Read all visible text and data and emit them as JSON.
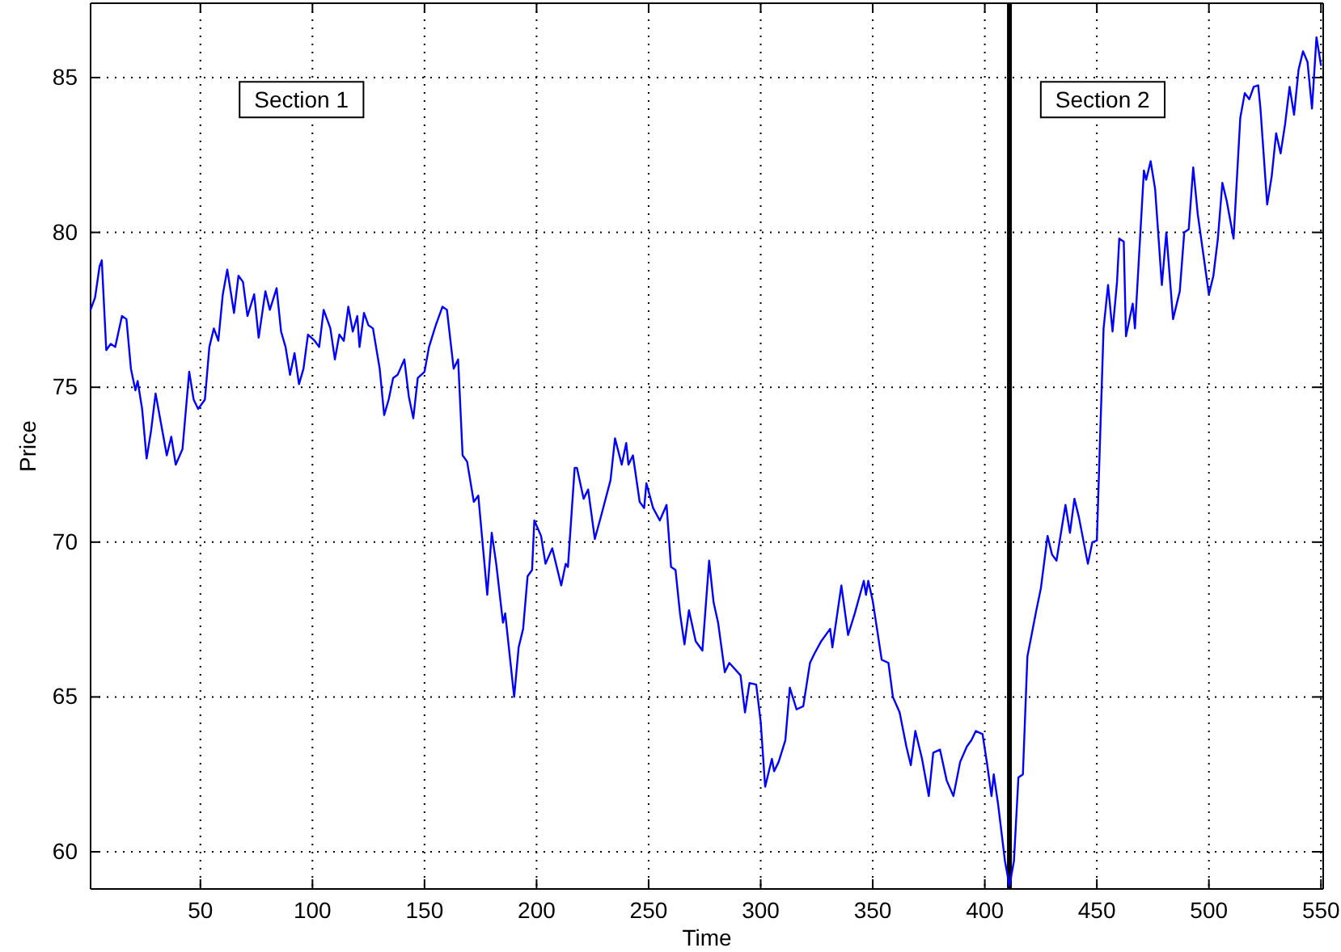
{
  "chart_data": {
    "type": "line",
    "xlabel": "Time",
    "ylabel": "Price",
    "xlim": [
      1,
      551
    ],
    "ylim": [
      58.8,
      87.4
    ],
    "xticks": [
      50,
      100,
      150,
      200,
      250,
      300,
      350,
      400,
      450,
      500,
      550
    ],
    "yticks": [
      60,
      65,
      70,
      75,
      80,
      85
    ],
    "grid": true,
    "line_style": "solid",
    "marker": "none",
    "annotations": [
      "Section 1",
      "Section 2"
    ],
    "ref_lines": [
      {
        "axis": "x",
        "value": 411,
        "color": "#000000"
      }
    ],
    "series": [
      {
        "color": "#0000ff",
        "x": [
          1,
          3,
          5,
          6,
          8,
          10,
          12,
          15,
          17,
          19,
          21,
          22,
          24,
          26,
          28,
          30,
          32,
          35,
          37,
          39,
          42,
          45,
          47,
          49,
          52,
          54,
          56,
          58,
          60,
          62,
          65,
          67,
          69,
          71,
          74,
          76,
          79,
          81,
          84,
          86,
          88,
          90,
          92,
          94,
          96,
          98,
          101,
          103,
          105,
          108,
          110,
          112,
          114,
          116,
          118,
          120,
          121,
          123,
          125,
          127,
          130,
          132,
          134,
          136,
          138,
          141,
          143,
          145,
          147,
          150,
          152,
          155,
          158,
          160,
          163,
          165,
          167,
          169,
          172,
          174,
          178,
          180,
          182,
          185,
          186,
          190,
          192,
          194,
          196,
          198,
          199,
          202,
          204,
          207,
          211,
          213,
          214,
          217,
          218,
          221,
          223,
          226,
          229,
          233,
          235,
          238,
          240,
          241,
          243,
          246,
          248,
          249,
          252,
          255,
          258,
          260,
          262,
          264,
          266,
          268,
          271,
          274,
          277,
          279,
          281,
          284,
          286,
          291,
          293,
          295,
          298,
          300,
          302,
          305,
          306,
          308,
          311,
          313,
          316,
          319,
          322,
          324,
          327,
          331,
          332,
          336,
          339,
          342,
          346,
          347,
          348,
          350,
          354,
          357,
          359,
          362,
          365,
          367,
          369,
          372,
          375,
          377,
          380,
          383,
          386,
          389,
          392,
          394,
          396,
          399,
          401,
          403,
          404,
          406,
          409,
          411,
          413,
          415,
          417,
          419,
          423,
          425,
          428,
          430,
          432,
          436,
          438,
          440,
          442,
          446,
          448,
          450,
          453,
          455,
          457,
          459,
          460,
          462,
          463,
          466,
          467,
          471,
          472,
          474,
          476,
          479,
          481,
          484,
          487,
          489,
          491,
          493,
          495,
          500,
          502,
          504,
          506,
          508,
          511,
          514,
          516,
          518,
          520,
          522,
          523,
          526,
          528,
          530,
          532,
          534,
          536,
          538,
          540,
          542,
          544,
          546,
          548,
          550
        ],
        "values": [
          77.5,
          77.9,
          78.9,
          79.1,
          76.2,
          76.4,
          76.3,
          77.3,
          77.2,
          75.6,
          74.9,
          75.2,
          74.3,
          72.7,
          73.6,
          74.8,
          74.0,
          72.8,
          73.4,
          72.5,
          73.0,
          75.5,
          74.6,
          74.3,
          74.6,
          76.3,
          76.9,
          76.5,
          78.0,
          78.8,
          77.4,
          78.6,
          78.4,
          77.3,
          78.0,
          76.6,
          78.1,
          77.5,
          78.2,
          76.8,
          76.3,
          75.4,
          76.1,
          75.1,
          75.6,
          76.7,
          76.5,
          76.3,
          77.5,
          76.9,
          75.9,
          76.7,
          76.5,
          77.6,
          76.8,
          77.3,
          76.3,
          77.4,
          77.0,
          76.9,
          75.6,
          74.1,
          74.6,
          75.3,
          75.4,
          75.9,
          74.7,
          74.0,
          75.3,
          75.5,
          76.3,
          77.0,
          77.6,
          77.5,
          75.6,
          75.9,
          72.8,
          72.6,
          71.3,
          71.5,
          68.3,
          70.3,
          69.3,
          67.4,
          67.7,
          65.0,
          66.6,
          67.2,
          68.9,
          69.1,
          70.7,
          70.2,
          69.3,
          69.8,
          68.6,
          69.3,
          69.2,
          72.4,
          72.4,
          71.4,
          71.7,
          70.1,
          70.9,
          72.0,
          73.35,
          72.5,
          73.2,
          72.5,
          72.8,
          71.3,
          71.1,
          71.9,
          71.1,
          70.7,
          71.2,
          69.2,
          69.1,
          67.7,
          66.7,
          67.8,
          66.8,
          66.5,
          69.4,
          68.05,
          67.4,
          65.8,
          66.1,
          65.7,
          64.5,
          65.45,
          65.4,
          64.2,
          62.1,
          63.0,
          62.6,
          62.9,
          63.6,
          65.3,
          64.6,
          64.7,
          66.1,
          66.4,
          66.8,
          67.2,
          66.6,
          68.6,
          67.0,
          67.7,
          68.75,
          68.3,
          68.75,
          68.1,
          66.2,
          66.1,
          65.0,
          64.5,
          63.4,
          62.8,
          63.9,
          63.0,
          61.8,
          63.2,
          63.3,
          62.3,
          61.8,
          62.9,
          63.4,
          63.6,
          63.9,
          63.8,
          62.85,
          61.8,
          62.5,
          61.5,
          59.7,
          58.9,
          59.7,
          62.4,
          62.5,
          66.3,
          67.8,
          68.5,
          70.2,
          69.6,
          69.4,
          71.2,
          70.3,
          71.4,
          70.8,
          69.3,
          70.0,
          70.05,
          76.9,
          78.3,
          76.8,
          78.4,
          79.8,
          79.7,
          76.65,
          77.7,
          76.9,
          82.0,
          81.7,
          82.3,
          81.4,
          78.3,
          80.0,
          77.2,
          78.1,
          80.0,
          80.1,
          82.1,
          80.6,
          78.0,
          78.6,
          79.8,
          81.6,
          81.0,
          79.8,
          83.7,
          84.5,
          84.3,
          84.7,
          84.75,
          84.0,
          80.9,
          81.8,
          83.2,
          82.55,
          83.5,
          84.7,
          83.8,
          85.25,
          85.85,
          85.5,
          84.0,
          86.3,
          85.4
        ]
      }
    ]
  }
}
